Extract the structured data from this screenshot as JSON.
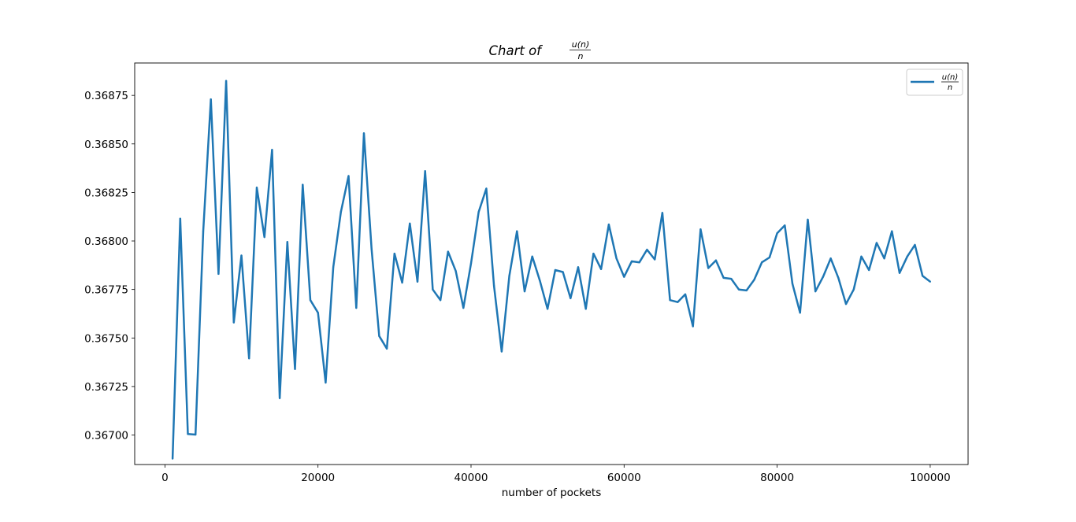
{
  "chart_data": {
    "type": "line",
    "title": "Chart of",
    "title_fraction": {
      "numerator": "u(n)",
      "denominator": "n"
    },
    "xlabel": "number of pockets",
    "ylabel": "",
    "xlim": [
      -3950,
      104950
    ],
    "ylim": [
      0.366848,
      0.368917
    ],
    "x_ticks": [
      0,
      20000,
      40000,
      60000,
      80000,
      100000
    ],
    "x_tick_labels": [
      "0",
      "20000",
      "40000",
      "60000",
      "80000",
      "100000"
    ],
    "y_ticks": [
      0.367,
      0.36725,
      0.3675,
      0.36775,
      0.368,
      0.36825,
      0.3685,
      0.36875
    ],
    "y_tick_labels": [
      "0.36700",
      "0.36725",
      "0.36750",
      "0.36775",
      "0.36800",
      "0.36825",
      "0.36850",
      "0.36875"
    ],
    "grid": false,
    "legend_position": "top-right",
    "series": [
      {
        "name": "u(n)/n",
        "legend_numerator": "u(n)",
        "legend_denominator": "n",
        "color": "#1f77b4",
        "x": [
          1000,
          2000,
          3000,
          4000,
          5000,
          6000,
          7000,
          8000,
          9000,
          10000,
          11000,
          12000,
          13000,
          14000,
          15000,
          16000,
          17000,
          18000,
          19000,
          20000,
          21000,
          22000,
          23000,
          24000,
          25000,
          26000,
          27000,
          28000,
          29000,
          30000,
          31000,
          32000,
          33000,
          34000,
          35000,
          36000,
          37000,
          38000,
          39000,
          40000,
          41000,
          42000,
          43000,
          44000,
          45000,
          46000,
          47000,
          48000,
          49000,
          50000,
          51000,
          52000,
          53000,
          54000,
          55000,
          56000,
          57000,
          58000,
          59000,
          60000,
          61000,
          62000,
          63000,
          64000,
          65000,
          66000,
          67000,
          68000,
          69000,
          70000,
          71000,
          72000,
          73000,
          74000,
          75000,
          76000,
          77000,
          78000,
          79000,
          80000,
          81000,
          82000,
          83000,
          84000,
          85000,
          86000,
          87000,
          88000,
          89000,
          90000,
          91000,
          92000,
          93000,
          94000,
          95000,
          96000,
          97000,
          98000,
          99000,
          100000
        ],
        "values": [
          0.366878,
          0.368115,
          0.367005,
          0.367002,
          0.36805,
          0.36873,
          0.36783,
          0.368825,
          0.36758,
          0.367925,
          0.367395,
          0.368275,
          0.36802,
          0.36847,
          0.36719,
          0.367995,
          0.36734,
          0.36829,
          0.367695,
          0.36763,
          0.36727,
          0.367865,
          0.36815,
          0.368335,
          0.367655,
          0.368555,
          0.36796,
          0.36751,
          0.367445,
          0.367935,
          0.367785,
          0.36809,
          0.36779,
          0.36836,
          0.36775,
          0.367695,
          0.367945,
          0.367845,
          0.367655,
          0.367885,
          0.36815,
          0.36827,
          0.36777,
          0.36743,
          0.36782,
          0.36805,
          0.36774,
          0.36792,
          0.367795,
          0.36765,
          0.36785,
          0.36784,
          0.367705,
          0.367865,
          0.36765,
          0.367935,
          0.367855,
          0.368085,
          0.36791,
          0.367815,
          0.367895,
          0.36789,
          0.367955,
          0.367905,
          0.368145,
          0.367695,
          0.367685,
          0.367725,
          0.36756,
          0.36806,
          0.36786,
          0.3679,
          0.36781,
          0.367805,
          0.36775,
          0.367745,
          0.3678,
          0.36789,
          0.367915,
          0.36804,
          0.36808,
          0.36778,
          0.36763,
          0.36811,
          0.36774,
          0.367815,
          0.36791,
          0.36781,
          0.367675,
          0.36775,
          0.36792,
          0.36785,
          0.36799,
          0.36791,
          0.36805,
          0.367835,
          0.36792,
          0.36798,
          0.36782,
          0.36779
        ]
      }
    ]
  }
}
